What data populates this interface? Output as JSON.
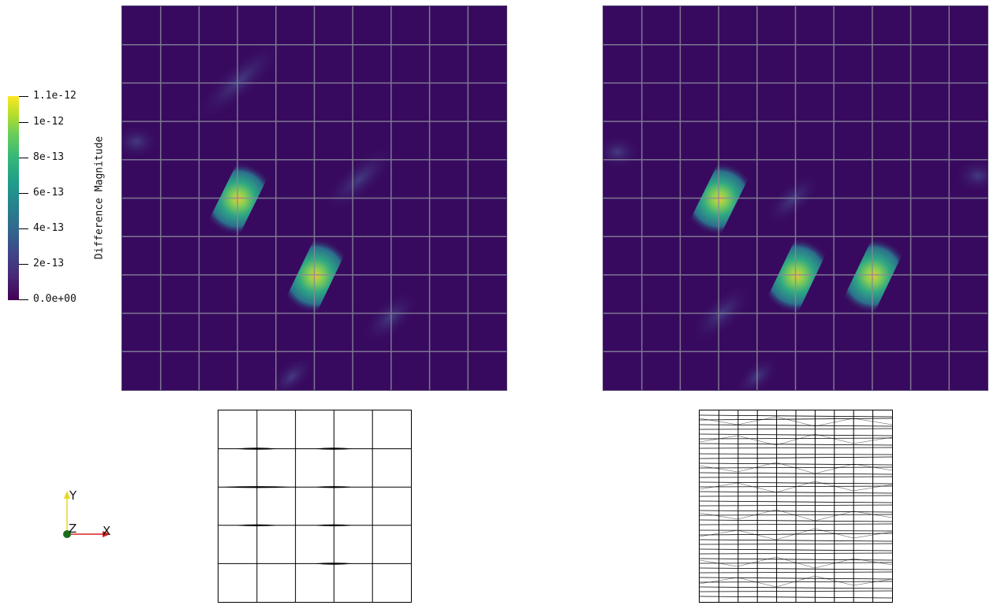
{
  "colorbar": {
    "title": "Difference Magnitude",
    "range": [
      0,
      1.1e-12
    ],
    "colormap": "viridis",
    "ticks": [
      {
        "label": "1.1e-12",
        "value": 1.1e-12
      },
      {
        "label": "1e-12",
        "value": 1e-12
      },
      {
        "label": "8e-13",
        "value": 8e-13
      },
      {
        "label": "6e-13",
        "value": 6e-13
      },
      {
        "label": "4e-13",
        "value": 4e-13
      },
      {
        "label": "2e-13",
        "value": 2e-13
      },
      {
        "label": "0.0e+00",
        "value": 0
      }
    ]
  },
  "views": {
    "left_field": {
      "grid_cells": 10
    },
    "right_field": {
      "grid_cells": 10
    },
    "left_mesh": {
      "grid_cells": 5
    },
    "right_mesh": {
      "grid_cells": 10
    }
  },
  "orientation_axes": {
    "x_label": "X",
    "y_label": "Y",
    "z_label": "Z",
    "colors": {
      "x": "#d62020",
      "y": "#e8d820",
      "z": "#1a6e1a"
    }
  },
  "colors": {
    "background_field": "#380a5f",
    "grid_lines": "#8a8a9a",
    "mesh_lines": "#000000"
  }
}
